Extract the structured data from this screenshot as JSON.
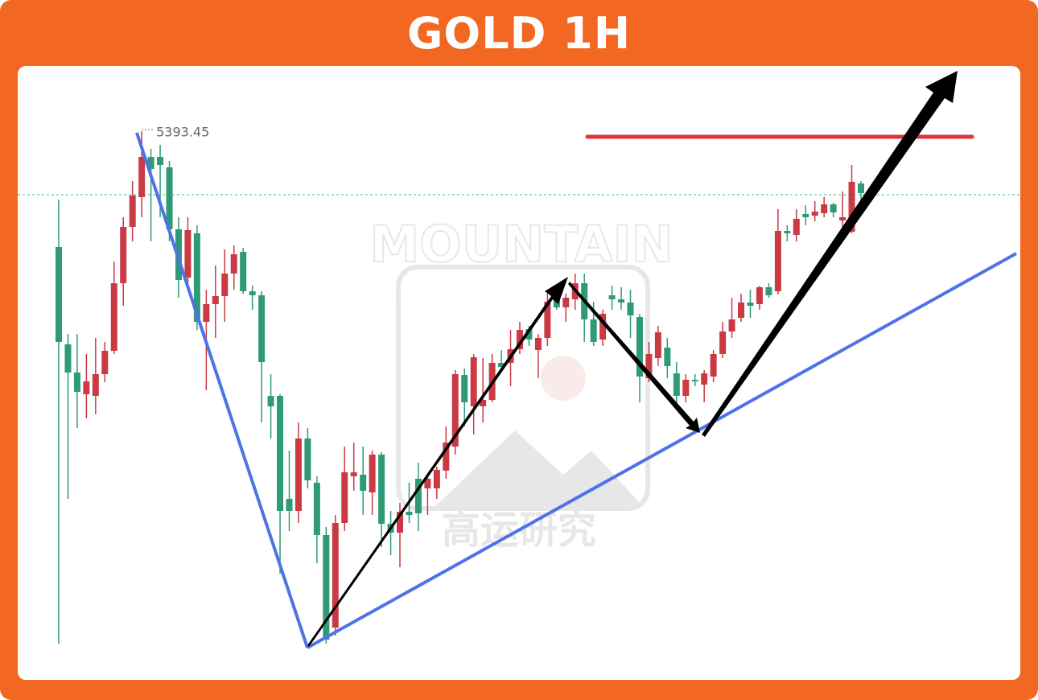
{
  "chart_data": {
    "type": "candlestick",
    "title": "GOLD 1H",
    "watermark": {
      "brand": "MOUNTAIN",
      "name": "高运研究"
    },
    "up_color": "#c93a45",
    "down_color": "#2f9a76",
    "ylim": [
      5050,
      5435
    ],
    "open": [
      5321.5,
      5261,
      5243.5,
      5230,
      5229,
      5242.5,
      5257,
      5299,
      5334,
      5352.5,
      5377.5,
      5377.5,
      5371,
      5332.5,
      5302.5,
      5330,
      5275,
      5286,
      5291,
      5305,
      5318.5,
      5294,
      5291.5,
      5229,
      5229,
      5165,
      5157.5,
      5202.5,
      5175,
      5142.5,
      5085,
      5150,
      5179,
      5180,
      5169,
      5192.5,
      5149.5,
      5144,
      5157,
      5177.5,
      5171.5,
      5171.5,
      5182.5,
      5197.5,
      5242,
      5222.5,
      5222.5,
      5226.5,
      5249.5,
      5249.5,
      5258,
      5270.5,
      5257.5,
      5265,
      5289,
      5284,
      5289,
      5299,
      5276.5,
      5264,
      5291.5,
      5289,
      5287,
      5278,
      5240,
      5252.5,
      5259,
      5243,
      5229,
      5239,
      5236,
      5241,
      5255,
      5269,
      5277.5,
      5287,
      5286,
      5296.5,
      5294,
      5331.5,
      5329,
      5342,
      5341,
      5342.5,
      5348,
      5338,
      5331,
      5361
    ],
    "high": [
      5351,
      5267.5,
      5267.5,
      5255,
      5265,
      5262.5,
      5312.5,
      5340,
      5362.5,
      5393.45,
      5382.5,
      5385,
      5375,
      5340,
      5340,
      5335,
      5295,
      5310,
      5320,
      5322.5,
      5321,
      5297.5,
      5294,
      5242.5,
      5230,
      5195,
      5212.5,
      5209,
      5179,
      5147.5,
      5155,
      5197.5,
      5200,
      5197.5,
      5195,
      5194,
      5157.5,
      5162.5,
      5175,
      5187.5,
      5180,
      5185,
      5210,
      5245,
      5246,
      5255,
      5252.5,
      5255,
      5257.5,
      5270,
      5275,
      5272.5,
      5267.5,
      5292.5,
      5292.5,
      5292.5,
      5305,
      5305,
      5287.5,
      5282.5,
      5297.5,
      5296.5,
      5295,
      5280,
      5262.5,
      5272.5,
      5265,
      5250,
      5242.5,
      5242.5,
      5245,
      5257.5,
      5275,
      5290,
      5292.5,
      5295,
      5297.5,
      5299,
      5345,
      5335,
      5345,
      5347.5,
      5350,
      5352.5,
      5349,
      5356,
      5372.5,
      5362.5
    ],
    "low": [
      5075,
      5165,
      5209,
      5215,
      5217.5,
      5237.5,
      5255,
      5285,
      5325,
      5340,
      5325,
      5340,
      5325,
      5290,
      5295,
      5270,
      5232.5,
      5265,
      5275,
      5295,
      5292.5,
      5282.5,
      5212.5,
      5202.5,
      5118.5,
      5145,
      5150,
      5171.5,
      5125,
      5075,
      5080,
      5145,
      5170,
      5155,
      5155,
      5135,
      5130,
      5122.5,
      5150,
      5145,
      5155,
      5165,
      5177.5,
      5192.5,
      5210,
      5205,
      5212.5,
      5225,
      5245,
      5235,
      5255,
      5260,
      5240,
      5260,
      5282.5,
      5275,
      5282.5,
      5262.5,
      5260,
      5260,
      5282.5,
      5282.5,
      5265,
      5225,
      5237.5,
      5247.5,
      5240,
      5225,
      5225,
      5235,
      5225,
      5237.5,
      5252.5,
      5265,
      5275,
      5277.5,
      5282.5,
      5290,
      5292,
      5325,
      5325,
      5335,
      5337.5,
      5340,
      5340,
      5327,
      5330,
      5350
    ],
    "close": [
      5262.5,
      5243.5,
      5231.5,
      5238,
      5242.5,
      5257,
      5299,
      5334,
      5353.5,
      5377.5,
      5370,
      5372.5,
      5332.5,
      5301,
      5332,
      5275,
      5286,
      5291,
      5305,
      5317,
      5294,
      5291.5,
      5250,
      5222.5,
      5157.5,
      5157.5,
      5202.5,
      5176.5,
      5142.5,
      5077.5,
      5150,
      5181.5,
      5181.5,
      5170,
      5192.5,
      5149.5,
      5144,
      5157,
      5155,
      5156,
      5177.5,
      5183,
      5200,
      5242.5,
      5225,
      5253,
      5226.5,
      5249.5,
      5247,
      5258,
      5270,
      5264,
      5265,
      5287.5,
      5284,
      5290,
      5299,
      5276.5,
      5262.5,
      5280,
      5289,
      5287,
      5279,
      5241,
      5255,
      5268.5,
      5247.5,
      5229,
      5239,
      5238,
      5243,
      5255,
      5269,
      5276.5,
      5287,
      5285,
      5296.5,
      5291.5,
      5331.5,
      5330,
      5339,
      5340,
      5343.5,
      5348,
      5343,
      5340,
      5362,
      5355
    ],
    "hlines": [
      {
        "value": 5390,
        "color": "#e0333d"
      },
      {
        "value": 5354,
        "color": "#6cc4ad",
        "dashed": true
      }
    ]
  }
}
